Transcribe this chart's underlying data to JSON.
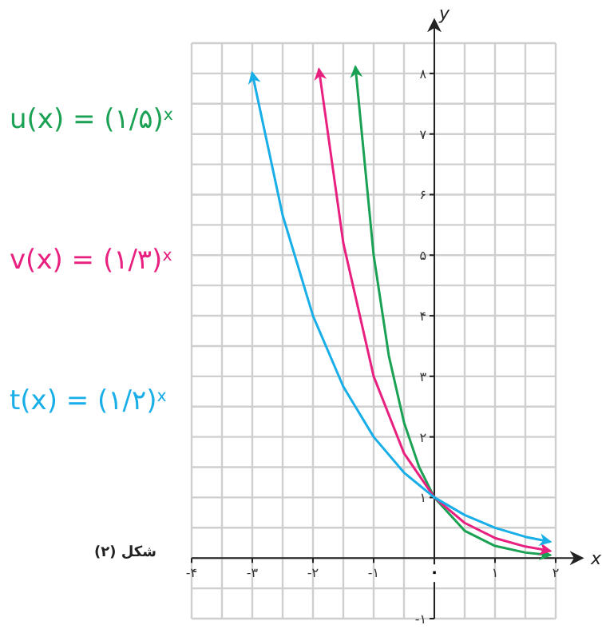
{
  "chart_data": {
    "type": "line",
    "xlabel": "x",
    "ylabel": "y",
    "xlim": [
      -4,
      2
    ],
    "ylim": [
      -1,
      8.5
    ],
    "xticks": [
      {
        "value": -4,
        "label": "-۴"
      },
      {
        "value": -3,
        "label": "-۳"
      },
      {
        "value": -2,
        "label": "-۲"
      },
      {
        "value": -1,
        "label": "-۱"
      },
      {
        "value": 0,
        "label": "۰"
      },
      {
        "value": 1,
        "label": "۱"
      },
      {
        "value": 2,
        "label": "۲"
      }
    ],
    "yticks": [
      {
        "value": -1,
        "label": "-۱"
      },
      {
        "value": 1,
        "label": "۱"
      },
      {
        "value": 2,
        "label": "۲"
      },
      {
        "value": 3,
        "label": "۳"
      },
      {
        "value": 4,
        "label": "۴"
      },
      {
        "value": 5,
        "label": "۵"
      },
      {
        "value": 6,
        "label": "۶"
      },
      {
        "value": 7,
        "label": "۷"
      },
      {
        "value": 8,
        "label": "۸"
      }
    ],
    "grid": true,
    "legend": "left",
    "marker": "none",
    "line_style": "solid",
    "annotations": [
      "شکل (۲)"
    ],
    "series": [
      {
        "name": "u(x) = (۱/۵)$^{x}$",
        "color": "#1aa153",
        "x": [
          -1.3,
          -1,
          -0.75,
          -0.5,
          -0.25,
          0,
          0.5,
          1,
          1.5,
          1.9
        ],
        "values": [
          8.1,
          5,
          3.34,
          2.24,
          1.5,
          1,
          0.45,
          0.2,
          0.09,
          0.05
        ]
      },
      {
        "name": "v(x) = (۱/۳)$^{x}$",
        "color": "#e8207f",
        "x": [
          -1.9,
          -1.5,
          -1,
          -0.5,
          0,
          0.5,
          1,
          1.5,
          1.9
        ],
        "values": [
          8.06,
          5.2,
          3,
          1.73,
          1,
          0.58,
          0.33,
          0.19,
          0.12
        ]
      },
      {
        "name": "t(x) = (۱/۲)$^{x}$",
        "color": "#18aee8",
        "x": [
          -3,
          -2.5,
          -2,
          -1.5,
          -1,
          -0.5,
          0,
          0.5,
          1,
          1.5,
          1.9
        ],
        "values": [
          8,
          5.66,
          4,
          2.83,
          2,
          1.41,
          1,
          0.71,
          0.5,
          0.35,
          0.27
        ]
      }
    ]
  }
}
